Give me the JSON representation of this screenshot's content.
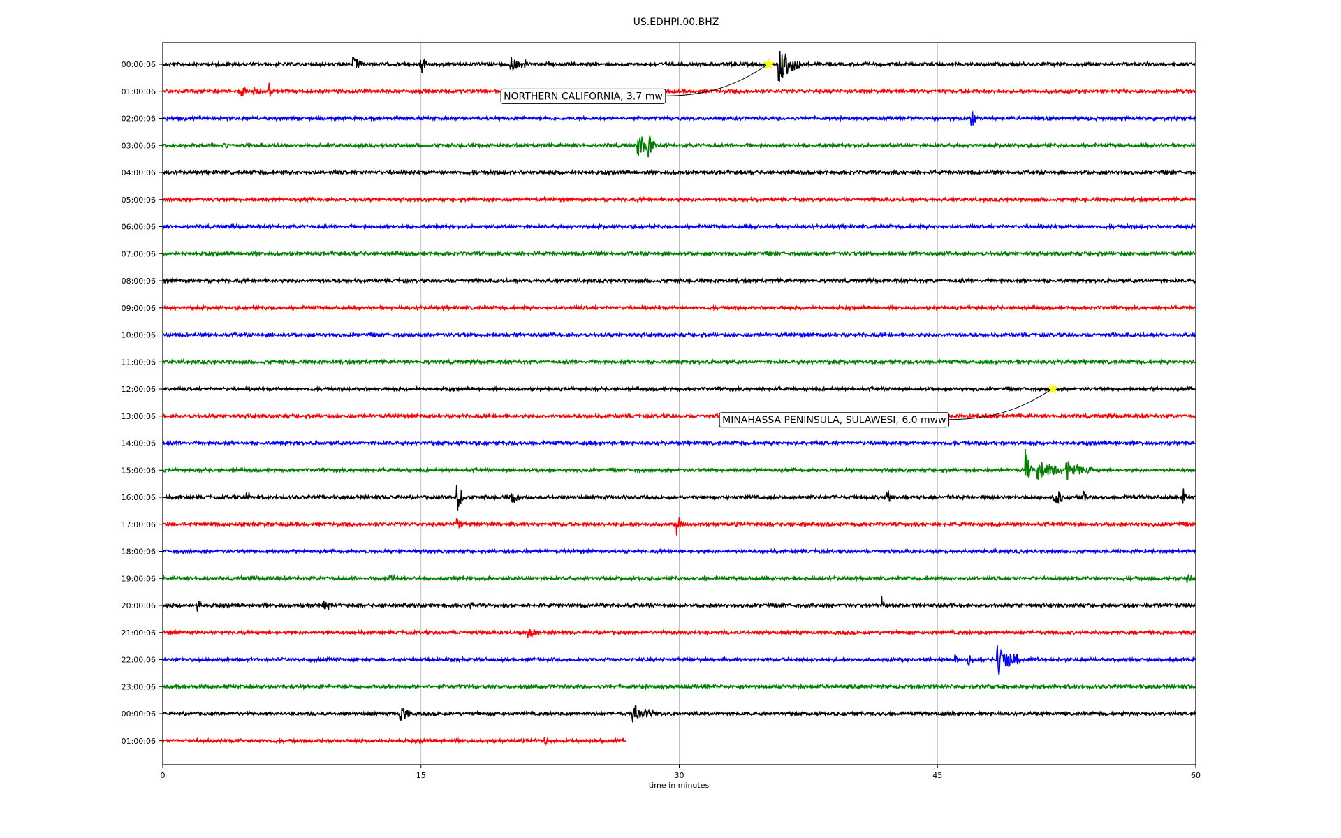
{
  "chart_data": {
    "type": "line",
    "title": "US.EDHPI.00.BHZ",
    "xlabel": "time in minutes",
    "ylabel": "",
    "xlim": [
      0,
      60
    ],
    "xticks": [
      0,
      15,
      30,
      45,
      60
    ],
    "grid": "vertical lines at x ticks",
    "trace_colors": [
      "#000000",
      "#ff0000",
      "#0000ff",
      "#008000"
    ],
    "series": [
      {
        "label": "00:00:06",
        "end": 60,
        "bursts": [
          [
            11,
            1.0,
            0.6
          ],
          [
            15,
            1.5,
            0.3
          ],
          [
            20.2,
            1.0,
            0.8
          ],
          [
            21,
            0.6,
            0.3
          ],
          [
            35.8,
            2.2,
            1.2
          ]
        ]
      },
      {
        "label": "01:00:06",
        "end": 60,
        "bursts": [
          [
            4.6,
            0.8,
            0.3
          ],
          [
            5.3,
            0.7,
            0.4
          ],
          [
            6.2,
            1.0,
            0.3
          ]
        ]
      },
      {
        "label": "02:00:06",
        "end": 60,
        "bursts": [
          [
            47,
            1.2,
            0.3
          ]
        ]
      },
      {
        "label": "03:00:06",
        "end": 60,
        "bursts": [
          [
            3.5,
            0.5,
            0.3
          ],
          [
            27.6,
            1.6,
            1.0
          ],
          [
            28.2,
            2.0,
            0.3
          ]
        ]
      },
      {
        "label": "04:00:06",
        "end": 60,
        "bursts": []
      },
      {
        "label": "05:00:06",
        "end": 60,
        "bursts": []
      },
      {
        "label": "06:00:06",
        "end": 60,
        "bursts": []
      },
      {
        "label": "07:00:06",
        "end": 60,
        "bursts": []
      },
      {
        "label": "08:00:06",
        "end": 60,
        "bursts": []
      },
      {
        "label": "09:00:06",
        "end": 60,
        "bursts": []
      },
      {
        "label": "10:00:06",
        "end": 60,
        "bursts": []
      },
      {
        "label": "11:00:06",
        "end": 60,
        "bursts": []
      },
      {
        "label": "12:00:06",
        "end": 60,
        "bursts": []
      },
      {
        "label": "13:00:06",
        "end": 60,
        "bursts": []
      },
      {
        "label": "14:00:06",
        "end": 60,
        "bursts": []
      },
      {
        "label": "15:00:06",
        "end": 60,
        "bursts": [
          [
            50.1,
            2.6,
            0.4
          ],
          [
            50.8,
            1.2,
            1.8
          ],
          [
            52.5,
            1.0,
            1.5
          ]
        ]
      },
      {
        "label": "16:00:06",
        "end": 60,
        "bursts": [
          [
            4.9,
            0.9,
            0.2
          ],
          [
            17.1,
            1.9,
            0.4
          ],
          [
            20.3,
            0.9,
            0.5
          ],
          [
            42,
            0.8,
            0.5
          ],
          [
            51.8,
            1.3,
            0.5
          ],
          [
            53.5,
            0.6,
            0.2
          ],
          [
            59.3,
            0.9,
            0.2
          ]
        ]
      },
      {
        "label": "17:00:06",
        "end": 60,
        "bursts": [
          [
            17.1,
            0.8,
            0.3
          ],
          [
            29.9,
            1.2,
            0.4
          ]
        ]
      },
      {
        "label": "18:00:06",
        "end": 60,
        "bursts": []
      },
      {
        "label": "19:00:06",
        "end": 60,
        "bursts": [
          [
            13.2,
            0.6,
            0.3
          ],
          [
            59.5,
            0.6,
            0.3
          ]
        ]
      },
      {
        "label": "20:00:06",
        "end": 60,
        "bursts": [
          [
            2,
            0.8,
            0.3
          ],
          [
            9.4,
            0.6,
            0.3
          ],
          [
            17.9,
            0.5,
            0.2
          ],
          [
            41.8,
            0.8,
            0.2
          ]
        ]
      },
      {
        "label": "21:00:06",
        "end": 60,
        "bursts": [
          [
            21.2,
            0.7,
            0.8
          ]
        ]
      },
      {
        "label": "22:00:06",
        "end": 60,
        "bursts": [
          [
            46,
            0.7,
            0.3
          ],
          [
            46.8,
            0.8,
            0.3
          ],
          [
            48.5,
            1.8,
            1.3
          ]
        ]
      },
      {
        "label": "23:00:06",
        "end": 60,
        "bursts": []
      },
      {
        "label": "00:00:06",
        "end": 60,
        "bursts": [
          [
            13.8,
            1.1,
            0.6
          ],
          [
            27.3,
            1.0,
            1.2
          ]
        ]
      },
      {
        "label": "01:00:06",
        "end": 26.9,
        "bursts": [
          [
            22.2,
            0.7,
            0.3
          ]
        ]
      }
    ],
    "events": [
      {
        "label": "NORTHERN CALIFORNIA, 3.7 mw",
        "trace": 0,
        "time": 35.2,
        "label_x": 19.8,
        "label_trace": 1.17
      },
      {
        "label": "MINAHASSA PENINSULA, SULAWESI, 6.0 mww",
        "trace": 12,
        "time": 51.7,
        "label_x": 32.5,
        "label_trace": 13.13
      }
    ]
  }
}
